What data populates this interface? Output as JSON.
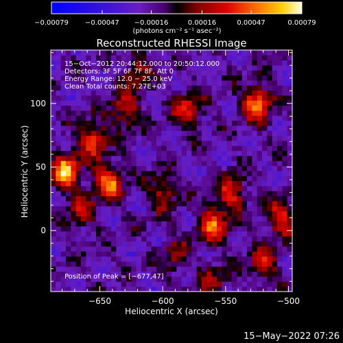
{
  "chart_data": {
    "type": "heatmap",
    "title": "Reconstructed RHESSI Image",
    "xlabel": "Heliocentric X (arcsec)",
    "ylabel": "Heliocentric Y (arcsec)",
    "xlim": [
      -689,
      -497
    ],
    "ylim": [
      -48,
      142
    ],
    "x_ticks": [
      -650,
      -600,
      -550,
      -500
    ],
    "y_ticks": [
      0,
      50,
      100
    ],
    "x_tick_labels": [
      "−650",
      "−600",
      "−550",
      "−500"
    ],
    "y_tick_labels": [
      "0",
      "50",
      "100"
    ],
    "colorbar": {
      "range": [
        -0.00079,
        0.00079
      ],
      "ticks": [
        -0.00079,
        -0.00047,
        -0.00016,
        0.00016,
        0.00047,
        0.00079
      ],
      "tick_labels": [
        "−0.00079",
        "−0.00047",
        "−0.00016",
        "0.00016",
        "0.00047",
        "0.00079"
      ],
      "unit_label": "(photons cm⁻² s⁻¹ asec⁻²)"
    },
    "annotations": [
      "15−Oct−2012 20:44:12.000 to 20:50:12.000",
      "Detectors: 3F 5F 6F 7F 8F, Att 0",
      "Energy Range: 12.0 − 25.0 keV",
      "Clean      Total counts: 7.27E+03"
    ],
    "peak_label": "Position of Peak = [−677,47]",
    "peak": {
      "x": -677,
      "y": 47,
      "value": 0.00079
    },
    "sources": [
      {
        "x": -677,
        "y": 47,
        "amp": 0.00079
      },
      {
        "x": -643,
        "y": 38,
        "amp": 0.0007
      },
      {
        "x": -655,
        "y": 72,
        "amp": 0.00055
      },
      {
        "x": -630,
        "y": 95,
        "amp": 0.00045
      },
      {
        "x": -580,
        "y": 95,
        "amp": 0.0005
      },
      {
        "x": -525,
        "y": 100,
        "amp": 0.0007
      },
      {
        "x": -560,
        "y": 5,
        "amp": 0.00065
      },
      {
        "x": -545,
        "y": 30,
        "amp": 0.0005
      },
      {
        "x": -505,
        "y": 10,
        "amp": 0.00055
      },
      {
        "x": -520,
        "y": -25,
        "amp": 0.00045
      },
      {
        "x": -600,
        "y": 30,
        "amp": 0.0004
      },
      {
        "x": -665,
        "y": 15,
        "amp": 0.00035
      },
      {
        "x": -590,
        "y": -20,
        "amp": 0.0003
      },
      {
        "x": -620,
        "y": 125,
        "amp": 0.00035
      },
      {
        "x": -560,
        "y": -40,
        "amp": 0.0003
      }
    ],
    "grid": false
  },
  "footer": {
    "timestamp": "15−May−2022 07:26"
  },
  "colors": {
    "background": "#000000",
    "text": "#ffffff"
  }
}
